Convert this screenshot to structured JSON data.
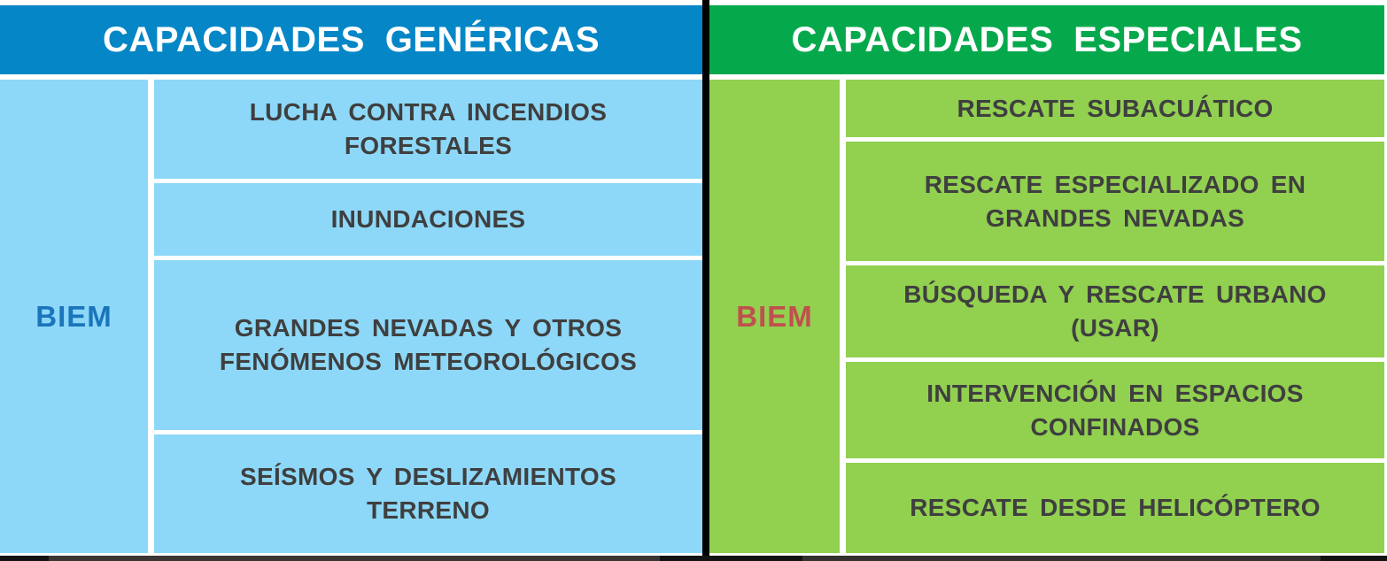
{
  "generic_table": {
    "title": "CAPACIDADES GENÉRICAS",
    "header_color": "#0586C6",
    "cell_color": "#8DD8F8",
    "unit": "BIEM",
    "unit_text_color": "#1B75BC",
    "capabilities": [
      "LUCHA CONTRA INCENDIOS FORESTALES",
      "INUNDACIONES",
      "GRANDES NEVADAS Y OTROS FENÓMENOS METEOROLÓGICOS",
      "SEÍSMOS Y DESLIZAMIENTOS TERRENO"
    ]
  },
  "special_table": {
    "title": "CAPACIDADES ESPECIALES",
    "header_color": "#05A94C",
    "cell_color": "#92D050",
    "unit": "BIEM",
    "unit_text_color": "#C0504D",
    "capabilities": [
      "RESCATE SUBACUÁTICO",
      "RESCATE ESPECIALIZADO EN GRANDES NEVADAS",
      "BÚSQUEDA Y RESCATE URBANO (USAR)",
      "INTERVENCIÓN EN ESPACIOS CONFINADOS",
      "RESCATE DESDE HELICÓPTERO"
    ]
  },
  "body_text_color": "#3F3F3F",
  "divider_color": "#000000"
}
